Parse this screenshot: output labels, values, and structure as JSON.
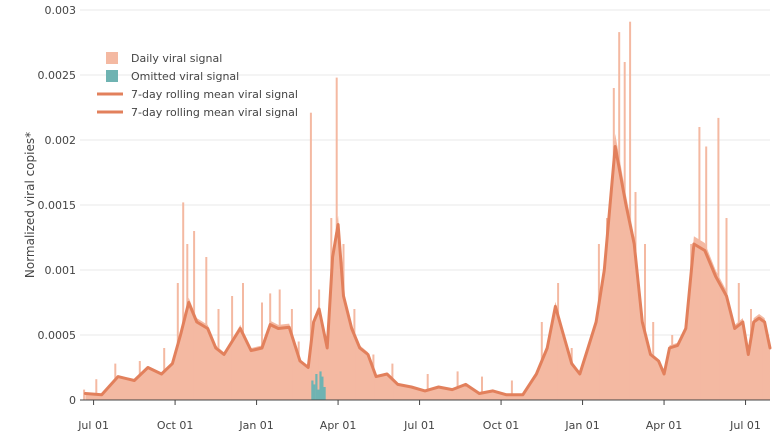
{
  "chart_data": {
    "type": "bar",
    "title": "",
    "xlabel": "",
    "ylabel": "Normalized viral copies*",
    "ylim": [
      0,
      0.003
    ],
    "y_ticks": [
      "0",
      "0.0005",
      "0.001",
      "0.0015",
      "0.002",
      "0.0025",
      "0.003"
    ],
    "x_ticks": [
      "Jul 01",
      "Oct 01",
      "Jan 01",
      "Apr 01",
      "Jul 01",
      "Oct 01",
      "Jan 01",
      "Apr 01",
      "Jul 01"
    ],
    "x_range_months": [
      -0.5,
      24.9
    ],
    "grid": true,
    "legend_position": "top-left",
    "colors": {
      "daily": "#f4b9a2",
      "omitted": "#6fb3b2",
      "rolling": "#e2805c",
      "grid": "#e8e8e8",
      "axis": "#444444"
    },
    "legend": [
      {
        "label": "Daily viral signal",
        "kind": "bar",
        "color": "#f4b9a2"
      },
      {
        "label": "Omitted viral signal",
        "kind": "bar",
        "color": "#6fb3b2"
      },
      {
        "label": "7-day rolling mean viral signal",
        "kind": "line",
        "color": "#e2805c"
      },
      {
        "label": "7-day rolling mean viral signal",
        "kind": "line",
        "color": "#e2805c"
      }
    ],
    "rolling_mean": {
      "name": "7-day rolling mean viral signal",
      "x_month": [
        -0.3,
        0.3,
        0.9,
        1.5,
        2.0,
        2.5,
        2.9,
        3.2,
        3.5,
        3.8,
        4.2,
        4.5,
        4.8,
        5.1,
        5.4,
        5.8,
        6.2,
        6.5,
        6.8,
        7.2,
        7.6,
        7.9,
        8.1,
        8.3,
        8.6,
        8.8,
        9.0,
        9.2,
        9.5,
        9.8,
        10.1,
        10.4,
        10.8,
        11.2,
        11.7,
        12.2,
        12.7,
        13.2,
        13.7,
        14.2,
        14.7,
        15.2,
        15.8,
        16.3,
        16.7,
        17.0,
        17.3,
        17.6,
        17.9,
        18.2,
        18.5,
        18.8,
        19.2,
        19.6,
        19.9,
        20.2,
        20.5,
        20.8,
        21.0,
        21.2,
        21.5,
        21.8,
        22.1,
        22.5,
        22.9,
        23.3,
        23.6,
        23.9,
        24.1,
        24.3,
        24.5,
        24.7,
        24.9
      ],
      "y": [
        5e-05,
        4e-05,
        0.00018,
        0.00015,
        0.00025,
        0.0002,
        0.00028,
        0.0005,
        0.00075,
        0.0006,
        0.00055,
        0.0004,
        0.00035,
        0.00045,
        0.00055,
        0.00038,
        0.0004,
        0.00058,
        0.00055,
        0.00056,
        0.0003,
        0.00025,
        0.0006,
        0.0007,
        0.0004,
        0.0011,
        0.00135,
        0.0008,
        0.00055,
        0.0004,
        0.00035,
        0.00018,
        0.0002,
        0.00012,
        0.0001,
        7e-05,
        0.0001,
        8e-05,
        0.00012,
        5e-05,
        7e-05,
        4e-05,
        4e-05,
        0.0002,
        0.0004,
        0.00072,
        0.0005,
        0.00028,
        0.0002,
        0.0004,
        0.0006,
        0.001,
        0.00195,
        0.0015,
        0.0012,
        0.0006,
        0.00035,
        0.0003,
        0.0002,
        0.0004,
        0.00042,
        0.00055,
        0.0012,
        0.00115,
        0.00095,
        0.0008,
        0.00055,
        0.0006,
        0.00035,
        0.0006,
        0.00063,
        0.0006,
        0.0004
      ]
    },
    "daily_envelope": {
      "x_month": [
        -0.3,
        0.3,
        0.9,
        1.5,
        2.0,
        2.5,
        2.9,
        3.2,
        3.5,
        3.8,
        4.2,
        4.5,
        4.8,
        5.1,
        5.4,
        5.8,
        6.2,
        6.5,
        6.8,
        7.2,
        7.6,
        7.9,
        8.1,
        8.3,
        8.6,
        8.8,
        9.0,
        9.2,
        9.5,
        9.8,
        10.1,
        10.4,
        10.8,
        11.2,
        11.7,
        12.2,
        12.7,
        13.2,
        13.7,
        14.2,
        14.7,
        15.2,
        15.8,
        16.3,
        16.7,
        17.0,
        17.3,
        17.6,
        17.9,
        18.2,
        18.5,
        18.8,
        19.2,
        19.6,
        19.9,
        20.2,
        20.5,
        20.8,
        21.0,
        21.2,
        21.5,
        21.8,
        22.1,
        22.5,
        22.9,
        23.3,
        23.6,
        23.9,
        24.1,
        24.3,
        24.5,
        24.7,
        24.9
      ],
      "y": [
        5e-05,
        4e-05,
        0.00018,
        0.00015,
        0.00025,
        0.0002,
        0.00028,
        0.0005,
        0.00075,
        0.0006,
        0.00055,
        0.0004,
        0.00035,
        0.00045,
        0.00055,
        0.00038,
        0.0004,
        0.00058,
        0.00055,
        0.00056,
        0.0003,
        0.00025,
        0.0006,
        0.0007,
        0.0004,
        0.0011,
        0.00135,
        0.0008,
        0.00055,
        0.0004,
        0.00035,
        0.00018,
        0.0002,
        0.00012,
        0.0001,
        7e-05,
        0.0001,
        8e-05,
        0.00012,
        5e-05,
        7e-05,
        4e-05,
        4e-05,
        0.0002,
        0.0004,
        0.00072,
        0.0005,
        0.00028,
        0.0002,
        0.0004,
        0.0006,
        0.001,
        0.00195,
        0.0015,
        0.0012,
        0.0006,
        0.00035,
        0.0003,
        0.0002,
        0.0004,
        0.00042,
        0.00055,
        0.0012,
        0.00115,
        0.00095,
        0.0008,
        0.00055,
        0.0006,
        0.00035,
        0.0006,
        0.00063,
        0.0006,
        0.0004
      ]
    },
    "daily_spikes": [
      {
        "x_month": -0.35,
        "y": 8e-05
      },
      {
        "x_month": 0.1,
        "y": 0.00016
      },
      {
        "x_month": 0.8,
        "y": 0.00028
      },
      {
        "x_month": 1.7,
        "y": 0.0003
      },
      {
        "x_month": 2.6,
        "y": 0.0004
      },
      {
        "x_month": 3.1,
        "y": 0.0009
      },
      {
        "x_month": 3.3,
        "y": 0.00152
      },
      {
        "x_month": 3.45,
        "y": 0.0012
      },
      {
        "x_month": 3.7,
        "y": 0.0013
      },
      {
        "x_month": 4.15,
        "y": 0.0011
      },
      {
        "x_month": 4.6,
        "y": 0.0007
      },
      {
        "x_month": 5.1,
        "y": 0.0008
      },
      {
        "x_month": 5.5,
        "y": 0.0009
      },
      {
        "x_month": 6.2,
        "y": 0.00075
      },
      {
        "x_month": 6.5,
        "y": 0.00082
      },
      {
        "x_month": 6.85,
        "y": 0.00085
      },
      {
        "x_month": 7.3,
        "y": 0.0007
      },
      {
        "x_month": 7.55,
        "y": 0.00045
      },
      {
        "x_month": 8.0,
        "y": 0.00221
      },
      {
        "x_month": 8.3,
        "y": 0.00085
      },
      {
        "x_month": 8.95,
        "y": 0.00248
      },
      {
        "x_month": 8.75,
        "y": 0.0014
      },
      {
        "x_month": 9.2,
        "y": 0.0012
      },
      {
        "x_month": 9.6,
        "y": 0.0007
      },
      {
        "x_month": 10.3,
        "y": 0.00035
      },
      {
        "x_month": 11.0,
        "y": 0.00028
      },
      {
        "x_month": 12.3,
        "y": 0.0002
      },
      {
        "x_month": 13.4,
        "y": 0.00022
      },
      {
        "x_month": 14.3,
        "y": 0.00018
      },
      {
        "x_month": 15.4,
        "y": 0.00015
      },
      {
        "x_month": 16.5,
        "y": 0.0006
      },
      {
        "x_month": 17.1,
        "y": 0.0009
      },
      {
        "x_month": 17.6,
        "y": 0.0004
      },
      {
        "x_month": 18.6,
        "y": 0.0012
      },
      {
        "x_month": 18.9,
        "y": 0.0014
      },
      {
        "x_month": 19.15,
        "y": 0.0024
      },
      {
        "x_month": 19.35,
        "y": 0.00283
      },
      {
        "x_month": 19.55,
        "y": 0.0026
      },
      {
        "x_month": 19.75,
        "y": 0.00291
      },
      {
        "x_month": 19.95,
        "y": 0.0016
      },
      {
        "x_month": 20.3,
        "y": 0.0012
      },
      {
        "x_month": 20.6,
        "y": 0.0006
      },
      {
        "x_month": 21.3,
        "y": 0.0005
      },
      {
        "x_month": 22.0,
        "y": 0.0012
      },
      {
        "x_month": 22.3,
        "y": 0.0021
      },
      {
        "x_month": 22.55,
        "y": 0.00195
      },
      {
        "x_month": 23.0,
        "y": 0.00217
      },
      {
        "x_month": 23.3,
        "y": 0.0014
      },
      {
        "x_month": 23.75,
        "y": 0.0009
      },
      {
        "x_month": 24.2,
        "y": 0.0007
      },
      {
        "x_month": 24.6,
        "y": 0.0006
      }
    ],
    "omitted": [
      {
        "x_month": 8.05,
        "y": 0.00015
      },
      {
        "x_month": 8.12,
        "y": 0.00012
      },
      {
        "x_month": 8.2,
        "y": 0.0002
      },
      {
        "x_month": 8.28,
        "y": 8e-05
      },
      {
        "x_month": 8.35,
        "y": 0.00022
      },
      {
        "x_month": 8.42,
        "y": 0.00018
      },
      {
        "x_month": 8.5,
        "y": 0.0001
      }
    ]
  }
}
